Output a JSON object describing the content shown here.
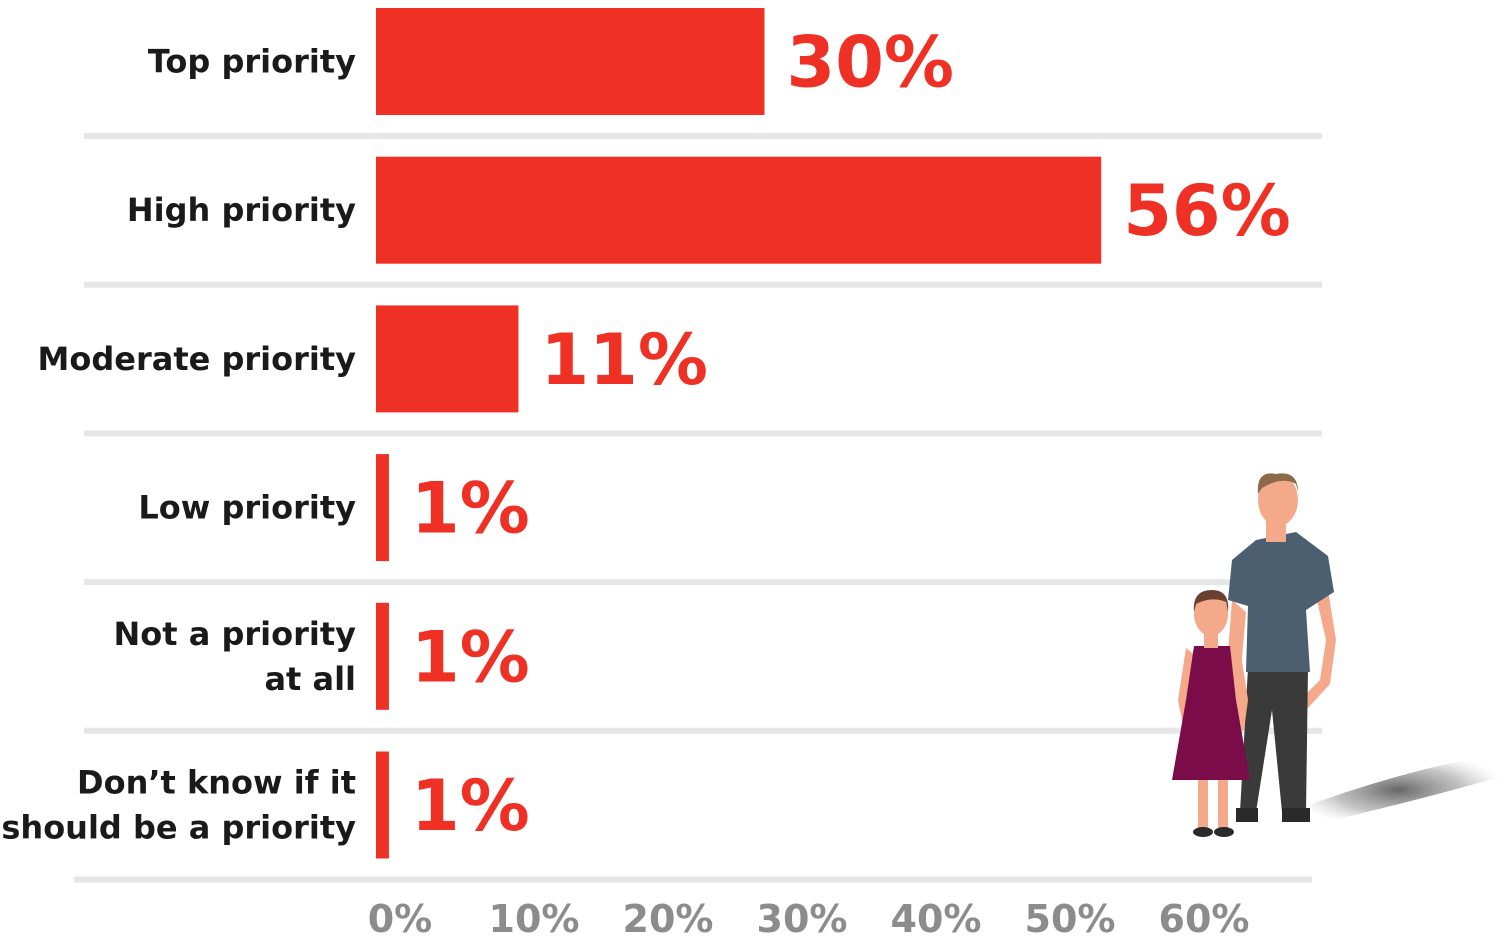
{
  "chart_data": {
    "type": "bar",
    "orientation": "horizontal",
    "categories": [
      [
        "Top priority"
      ],
      [
        "High priority"
      ],
      [
        "Moderate priority"
      ],
      [
        "Low priority"
      ],
      [
        "Not a priority",
        "at all"
      ],
      [
        "Don’t know if it",
        "should be a priority"
      ]
    ],
    "values": [
      30,
      56,
      11,
      1,
      1,
      1
    ],
    "value_labels": [
      "30%",
      "56%",
      "11%",
      "1%",
      "1%",
      "1%"
    ],
    "xlim": [
      0,
      60
    ],
    "x_ticks": [
      "0%",
      "10%",
      "20%",
      "30%",
      "40%",
      "50%",
      "60%"
    ],
    "grid": false,
    "colors": {
      "bar": "#EE3124",
      "value_label": "#EE3124",
      "separator": "#E6E6E6",
      "tick": "#8C8C8C"
    }
  },
  "illustration": {
    "name": "parent-and-child",
    "colors": {
      "skin": "#F4A98A",
      "man_shirt": "#4B5F70",
      "man_pants": "#3A3A3A",
      "man_hair": "#8A6A4A",
      "girl_dress": "#7A0C4A",
      "girl_hair": "#6A4030"
    }
  }
}
